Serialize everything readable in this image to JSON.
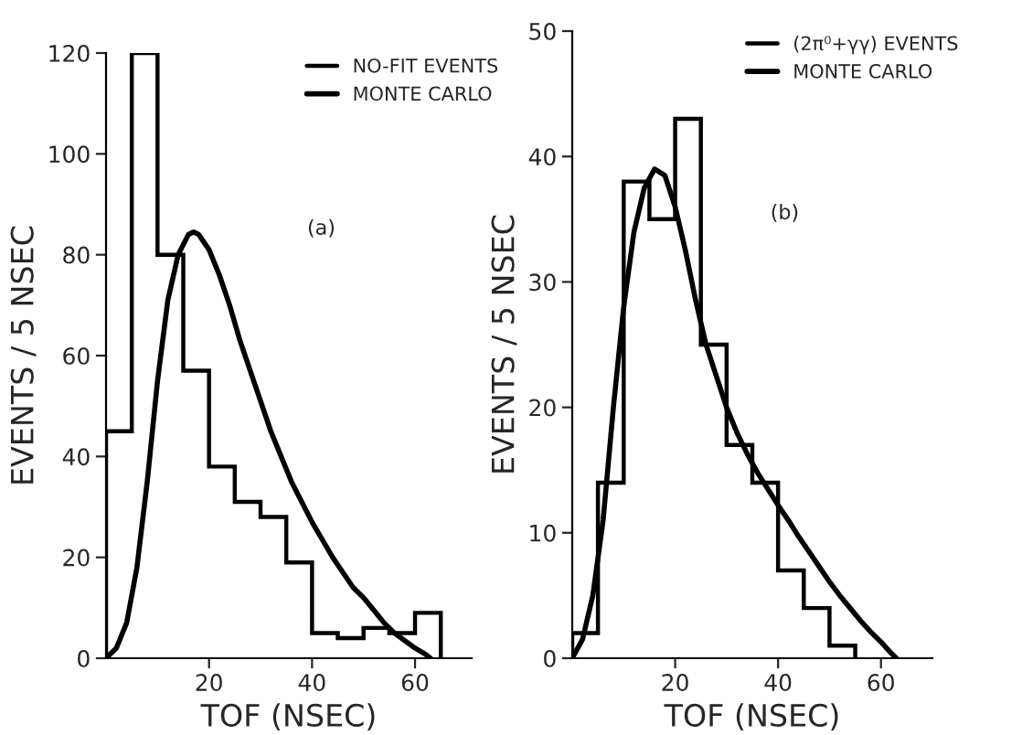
{
  "chart_data": [
    {
      "type": "histogram",
      "xlabel": "TOF (NSEC)",
      "ylabel": "EVENTS / 5 NSEC",
      "annotations": [
        "(a)"
      ],
      "bins": [
        0,
        5,
        10,
        15,
        20,
        25,
        30,
        35,
        40,
        45,
        50,
        55,
        60,
        65
      ],
      "series": [
        {
          "name": "NO-FIT EVENTS",
          "type": "histogram",
          "color": "#000000",
          "values": [
            45,
            120,
            80,
            57,
            38,
            31,
            28,
            19,
            5,
            4,
            6,
            5,
            9
          ]
        },
        {
          "name": "MONTE CARLO",
          "type": "line",
          "color": "#000000",
          "x": [
            0,
            2,
            4,
            6,
            8,
            10,
            12,
            14,
            16,
            17,
            18,
            20,
            22,
            24,
            26,
            28,
            30,
            32,
            34,
            36,
            38,
            40,
            42,
            44,
            46,
            48,
            50,
            52,
            54,
            56,
            58,
            60,
            62,
            63
          ],
          "values": [
            0,
            2,
            7,
            18,
            35,
            55,
            71,
            80,
            84,
            84.5,
            84,
            81,
            76,
            70,
            63,
            57,
            51,
            45,
            40,
            35,
            31,
            27,
            23.5,
            20,
            17,
            14,
            12,
            9.5,
            7,
            5,
            3.5,
            2,
            0.8,
            0
          ]
        }
      ],
      "xlim": [
        0,
        71
      ],
      "xticks": [
        20,
        40,
        60
      ],
      "ylim": [
        0,
        120
      ],
      "yticks": [
        0,
        20,
        40,
        60,
        80,
        100,
        120
      ],
      "grid": false,
      "legend": "top right"
    },
    {
      "type": "histogram",
      "xlabel": "TOF (NSEC)",
      "ylabel": "EVENTS / 5 NSEC",
      "annotations": [
        "(b)"
      ],
      "bins": [
        0,
        5,
        10,
        15,
        20,
        25,
        30,
        35,
        40,
        45,
        50,
        55
      ],
      "series": [
        {
          "name": "(2π⁰+γγ) EVENTS",
          "type": "histogram",
          "color": "#000000",
          "values": [
            2,
            14,
            38,
            35,
            43,
            25,
            17,
            14,
            7,
            4,
            1
          ]
        },
        {
          "name": "MONTE CARLO",
          "type": "line",
          "color": "#000000",
          "x": [
            0,
            2,
            4,
            6,
            8,
            10,
            12,
            14,
            16,
            18,
            20,
            22,
            24,
            26,
            28,
            30,
            32,
            34,
            36,
            38,
            40,
            42,
            44,
            46,
            48,
            50,
            52,
            54,
            56,
            58,
            60,
            62,
            63
          ],
          "values": [
            0,
            1.5,
            5,
            11,
            20,
            28,
            34,
            37.5,
            39,
            38.5,
            36,
            32.5,
            28.5,
            25,
            22.5,
            20,
            18,
            16.3,
            14.8,
            13.5,
            12.2,
            11,
            9.7,
            8.5,
            7.3,
            6.1,
            5,
            4,
            3,
            2.1,
            1.3,
            0.4,
            0
          ]
        }
      ],
      "xlim": [
        0,
        70
      ],
      "xticks": [
        20,
        40,
        60
      ],
      "ylim": [
        0,
        50
      ],
      "yticks": [
        0,
        10,
        20,
        30,
        40,
        50
      ],
      "grid": false,
      "legend": "top right"
    }
  ]
}
